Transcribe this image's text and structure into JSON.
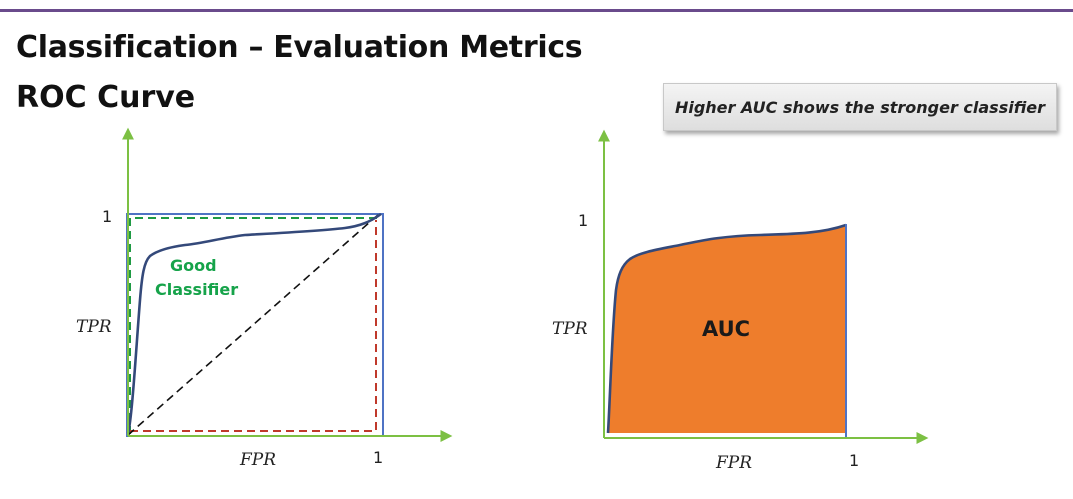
{
  "slide": {
    "title": "Classification – Evaluation Metrics",
    "subtitle": "ROC Curve",
    "callout": "Higher AUC shows the stronger classifier"
  },
  "left_plot": {
    "y_tick": "1",
    "x_tick": "1",
    "y_label": "TPR",
    "x_label": "FPR",
    "curve_label_line1": "Good",
    "curve_label_line2": "Classifier"
  },
  "right_plot": {
    "y_tick": "1",
    "x_tick": "1",
    "y_label": "TPR",
    "x_label": "FPR",
    "area_label": "AUC"
  },
  "colors": {
    "axis": "#7cc043",
    "curve": "#34497a",
    "perfect_box": "#4f73c4",
    "green_dash": "#1f9a44",
    "red_dash": "#c0392b",
    "random_line": "#111111",
    "auc_fill": "#ee7d2c",
    "good_text": "#16a34a",
    "title_rule": "#6a4b8c"
  }
}
